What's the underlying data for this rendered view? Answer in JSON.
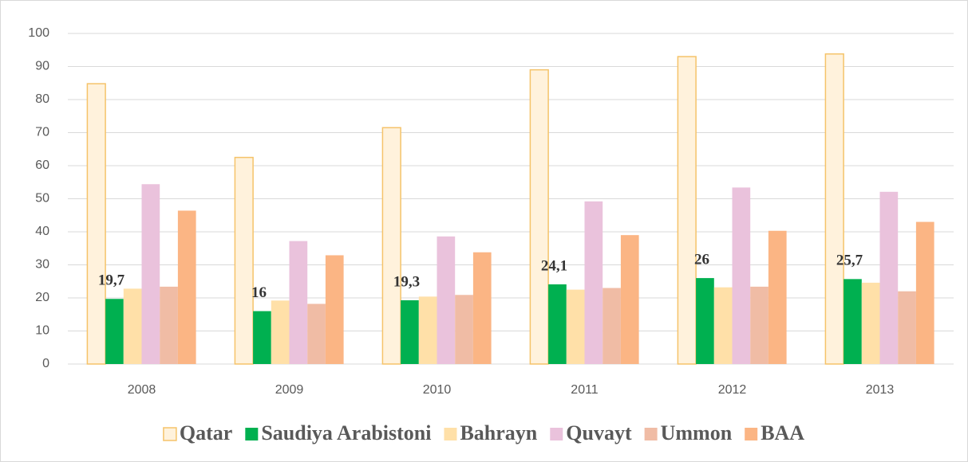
{
  "chart_data": {
    "type": "bar",
    "categories": [
      "2008",
      "2009",
      "2010",
      "2011",
      "2012",
      "2013"
    ],
    "series": [
      {
        "name": "Qatar",
        "color": "#fff2dc",
        "values": [
          84.8,
          62.5,
          71.5,
          89,
          93,
          93.8
        ]
      },
      {
        "name": "Saudiya Arabistoni",
        "color": "#00b050",
        "values": [
          19.7,
          16,
          19.3,
          24.1,
          26,
          25.7
        ],
        "value_labels": [
          "19,7",
          "16",
          "19,3",
          "24,1",
          "26",
          "25,7"
        ]
      },
      {
        "name": "Bahrayn",
        "color": "#ffe0a8",
        "values": [
          22.8,
          19.2,
          20.4,
          22.5,
          23.2,
          24.6
        ]
      },
      {
        "name": "Quvayt",
        "color": "#eac2dc",
        "values": [
          54.4,
          37.2,
          38.6,
          49.2,
          53.4,
          52.1
        ]
      },
      {
        "name": "Ummon",
        "color": "#f0bca5",
        "values": [
          23.4,
          18.2,
          20.9,
          23,
          23.4,
          22
        ]
      },
      {
        "name": "BAA",
        "color": "#fbb584",
        "values": [
          46.4,
          32.9,
          33.8,
          39,
          40.3,
          43
        ]
      }
    ],
    "ylim": [
      0,
      100
    ],
    "yticks": [
      0,
      10,
      20,
      30,
      40,
      50,
      60,
      70,
      80,
      90,
      100
    ],
    "grid": true,
    "legend": "bottom"
  }
}
